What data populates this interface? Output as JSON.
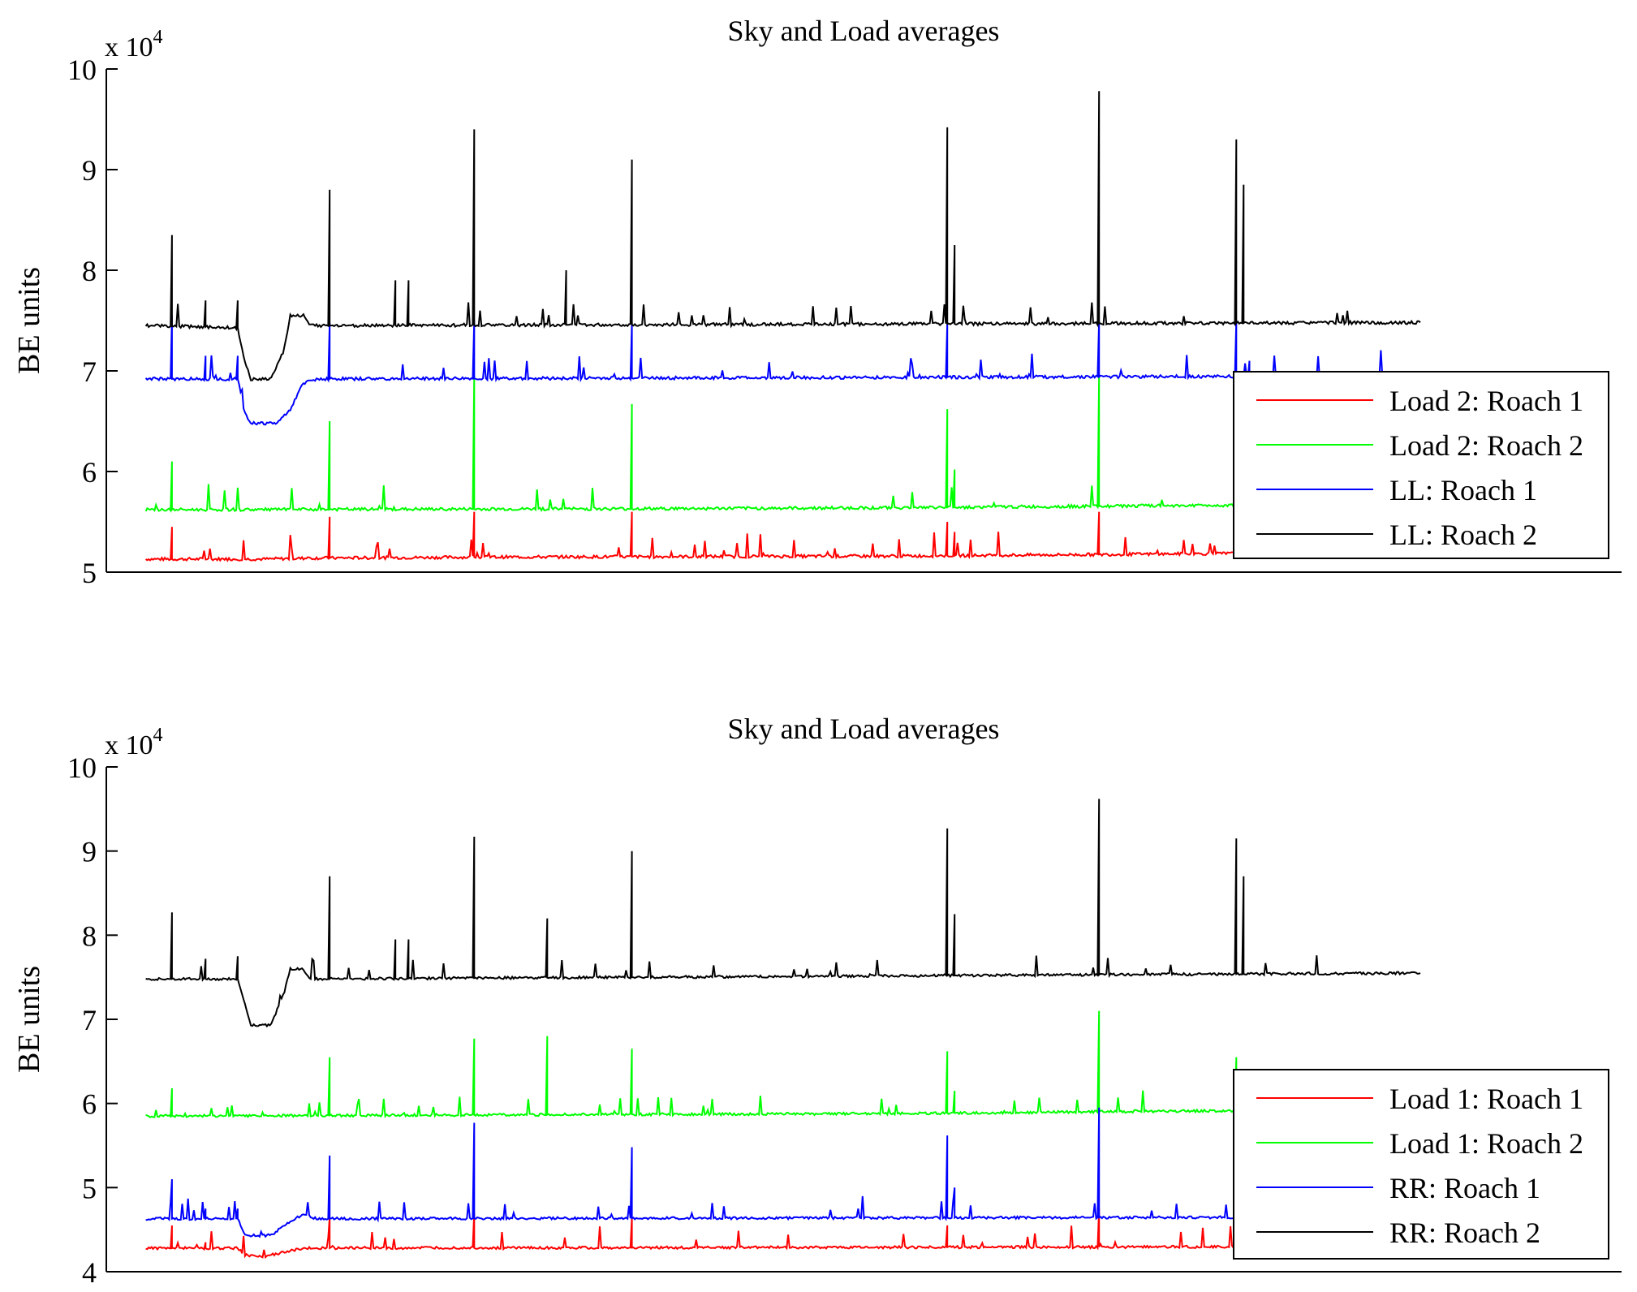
{
  "chart_data": [
    {
      "type": "line",
      "title": "Sky and Load averages",
      "xlabel": "",
      "ylabel": "BE units",
      "exponent_label": "x 10",
      "exponent_power": "4",
      "ylim": [
        5,
        10
      ],
      "yticks": [
        "5",
        "6",
        "7",
        "8",
        "9",
        "10"
      ],
      "xlim": [
        0,
        1
      ],
      "legend_position": "lower-right",
      "series": [
        {
          "name": "Load 2: Roach 1",
          "color": "#ff0000",
          "base": [
            [
              0.03,
              5.13
            ],
            [
              0.12,
              5.13
            ],
            [
              0.16,
              5.14
            ],
            [
              0.3,
              5.15
            ],
            [
              0.6,
              5.16
            ],
            [
              0.8,
              5.18
            ],
            [
              1.0,
              5.2
            ]
          ],
          "spikes": [
            [
              0.05,
              5.45
            ],
            [
              0.17,
              5.55
            ],
            [
              0.28,
              5.6
            ],
            [
              0.4,
              5.6
            ],
            [
              0.64,
              5.5
            ],
            [
              0.645,
              5.4
            ],
            [
              0.755,
              5.6
            ],
            [
              0.86,
              5.5
            ]
          ]
        },
        {
          "name": "Load 2: Roach 2",
          "color": "#00ff00",
          "base": [
            [
              0.03,
              5.62
            ],
            [
              0.4,
              5.63
            ],
            [
              0.6,
              5.64
            ],
            [
              0.8,
              5.66
            ],
            [
              1.0,
              5.68
            ]
          ],
          "spikes": [
            [
              0.05,
              6.1
            ],
            [
              0.17,
              6.5
            ],
            [
              0.28,
              6.95
            ],
            [
              0.4,
              6.67
            ],
            [
              0.64,
              6.62
            ],
            [
              0.645,
              6.02
            ],
            [
              0.755,
              6.95
            ],
            [
              0.86,
              6.5
            ]
          ]
        },
        {
          "name": "LL: Roach 1",
          "color": "#0000ff",
          "base": [
            [
              0.03,
              6.92
            ],
            [
              0.1,
              6.92
            ],
            [
              0.105,
              6.6
            ],
            [
              0.11,
              6.48
            ],
            [
              0.13,
              6.48
            ],
            [
              0.14,
              6.62
            ],
            [
              0.15,
              6.88
            ],
            [
              0.16,
              6.92
            ],
            [
              1.0,
              6.95
            ]
          ],
          "spikes": [
            [
              0.05,
              7.55
            ],
            [
              0.075,
              7.15
            ],
            [
              0.1,
              7.15
            ],
            [
              0.17,
              7.48
            ],
            [
              0.28,
              7.5
            ],
            [
              0.4,
              7.48
            ],
            [
              0.64,
              7.48
            ],
            [
              0.755,
              7.5
            ],
            [
              0.86,
              7.5
            ],
            [
              0.87,
              7.1
            ]
          ]
        },
        {
          "name": "LL: Roach 2",
          "color": "#000000",
          "base": [
            [
              0.03,
              7.45
            ],
            [
              0.1,
              7.43
            ],
            [
              0.105,
              7.1
            ],
            [
              0.11,
              6.92
            ],
            [
              0.125,
              6.92
            ],
            [
              0.135,
              7.2
            ],
            [
              0.14,
              7.55
            ],
            [
              0.15,
              7.55
            ],
            [
              0.155,
              7.45
            ],
            [
              1.0,
              7.48
            ]
          ],
          "spikes": [
            [
              0.05,
              8.35
            ],
            [
              0.075,
              7.7
            ],
            [
              0.1,
              7.7
            ],
            [
              0.17,
              8.8
            ],
            [
              0.22,
              7.9
            ],
            [
              0.23,
              7.9
            ],
            [
              0.28,
              9.4
            ],
            [
              0.35,
              8.0
            ],
            [
              0.4,
              9.1
            ],
            [
              0.64,
              9.42
            ],
            [
              0.645,
              8.25
            ],
            [
              0.755,
              9.78
            ],
            [
              0.86,
              9.3
            ],
            [
              0.865,
              8.85
            ]
          ]
        }
      ]
    },
    {
      "type": "line",
      "title": "Sky and Load averages",
      "xlabel": "",
      "ylabel": "BE units",
      "exponent_label": "x 10",
      "exponent_power": "4",
      "ylim": [
        4,
        10
      ],
      "yticks": [
        "4",
        "5",
        "6",
        "7",
        "8",
        "9",
        "10"
      ],
      "xlim": [
        0,
        1
      ],
      "legend_position": "lower-right",
      "series": [
        {
          "name": "Load 1: Roach 1",
          "color": "#ff0000",
          "base": [
            [
              0.03,
              4.28
            ],
            [
              0.1,
              4.28
            ],
            [
              0.105,
              4.2
            ],
            [
              0.12,
              4.18
            ],
            [
              0.14,
              4.25
            ],
            [
              0.15,
              4.28
            ],
            [
              1.0,
              4.3
            ]
          ],
          "spikes": [
            [
              0.05,
              4.55
            ],
            [
              0.075,
              4.35
            ],
            [
              0.17,
              4.65
            ],
            [
              0.28,
              4.7
            ],
            [
              0.4,
              4.65
            ],
            [
              0.64,
              4.55
            ],
            [
              0.755,
              4.75
            ],
            [
              0.86,
              4.75
            ]
          ]
        },
        {
          "name": "Load 1: Roach 2",
          "color": "#00ff00",
          "base": [
            [
              0.03,
              5.85
            ],
            [
              0.4,
              5.87
            ],
            [
              0.6,
              5.88
            ],
            [
              0.75,
              5.9
            ],
            [
              1.0,
              5.93
            ]
          ],
          "spikes": [
            [
              0.05,
              6.18
            ],
            [
              0.17,
              6.55
            ],
            [
              0.28,
              6.77
            ],
            [
              0.335,
              6.8
            ],
            [
              0.4,
              6.65
            ],
            [
              0.64,
              6.62
            ],
            [
              0.645,
              6.15
            ],
            [
              0.755,
              7.1
            ],
            [
              0.86,
              6.55
            ]
          ]
        },
        {
          "name": "RR: Roach 1",
          "color": "#0000ff",
          "base": [
            [
              0.03,
              4.63
            ],
            [
              0.1,
              4.63
            ],
            [
              0.105,
              4.45
            ],
            [
              0.11,
              4.43
            ],
            [
              0.125,
              4.43
            ],
            [
              0.14,
              4.6
            ],
            [
              0.15,
              4.68
            ],
            [
              0.16,
              4.63
            ],
            [
              1.0,
              4.65
            ]
          ],
          "spikes": [
            [
              0.05,
              5.1
            ],
            [
              0.075,
              4.75
            ],
            [
              0.1,
              4.75
            ],
            [
              0.17,
              5.38
            ],
            [
              0.28,
              5.77
            ],
            [
              0.4,
              5.48
            ],
            [
              0.64,
              5.62
            ],
            [
              0.645,
              5.0
            ],
            [
              0.755,
              5.95
            ],
            [
              0.86,
              5.4
            ]
          ]
        },
        {
          "name": "RR: Roach 2",
          "color": "#000000",
          "base": [
            [
              0.03,
              7.48
            ],
            [
              0.1,
              7.48
            ],
            [
              0.105,
              7.2
            ],
            [
              0.11,
              6.93
            ],
            [
              0.125,
              6.93
            ],
            [
              0.135,
              7.3
            ],
            [
              0.14,
              7.6
            ],
            [
              0.15,
              7.6
            ],
            [
              0.155,
              7.48
            ],
            [
              1.0,
              7.55
            ]
          ],
          "spikes": [
            [
              0.05,
              8.27
            ],
            [
              0.075,
              7.72
            ],
            [
              0.1,
              7.75
            ],
            [
              0.17,
              8.7
            ],
            [
              0.22,
              7.95
            ],
            [
              0.23,
              7.95
            ],
            [
              0.28,
              9.17
            ],
            [
              0.335,
              8.2
            ],
            [
              0.4,
              9.0
            ],
            [
              0.64,
              9.27
            ],
            [
              0.645,
              8.25
            ],
            [
              0.755,
              9.62
            ],
            [
              0.86,
              9.15
            ],
            [
              0.865,
              8.7
            ]
          ]
        }
      ]
    }
  ]
}
